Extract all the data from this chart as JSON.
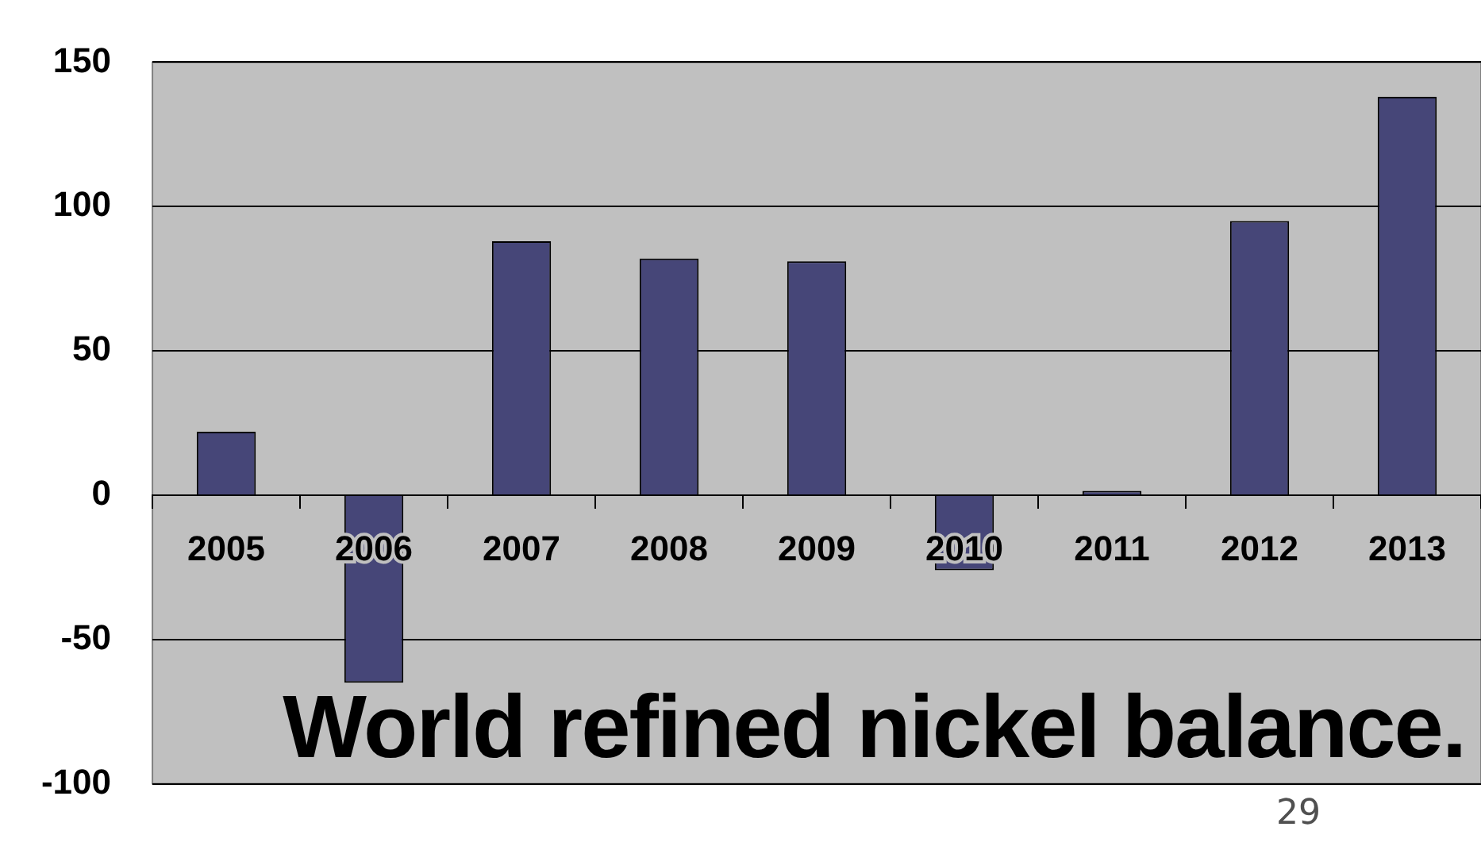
{
  "chart_data": {
    "type": "bar",
    "title": "World refined nickel balance.",
    "categories": [
      "2005",
      "2006",
      "2007",
      "2008",
      "2009",
      "2010",
      "2011",
      "2012",
      "2013"
    ],
    "values": [
      22,
      -65,
      88,
      82,
      81,
      -26,
      1.5,
      95,
      138
    ],
    "color": "#464678",
    "ylim": [
      -100,
      150
    ],
    "yticks": [
      -100,
      -50,
      0,
      50,
      100,
      150
    ],
    "grid": "y",
    "legend": false,
    "annotations": [
      "29"
    ]
  }
}
